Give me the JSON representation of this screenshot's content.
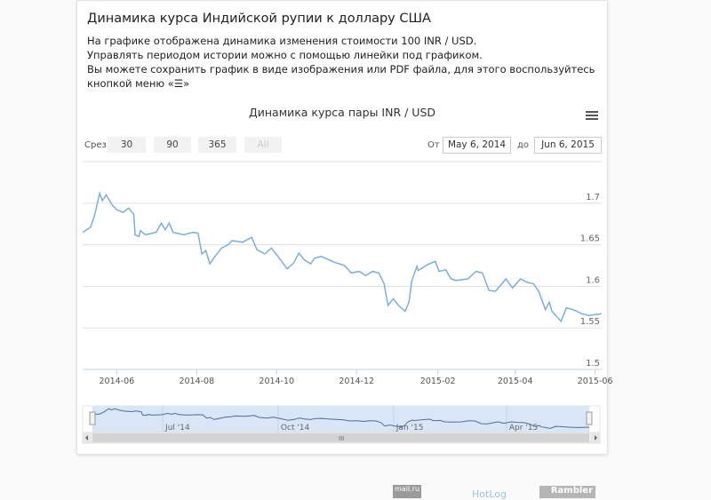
{
  "header": {
    "title": "Динамика курса Индийской рупии к доллару США",
    "description": [
      "На графике отображена динамика изменения стоимости 100 INR / USD.",
      "Управлять периодом истории можно с помощью линейки под графиком.",
      "Вы можете сохранить график в виде изображения или PDF файла, для этого воспользуйтесь",
      "кнопкой меню «☰»"
    ]
  },
  "range_selector": {
    "label": "Срез",
    "buttons": [
      "30",
      "90",
      "365",
      "All"
    ],
    "from_label": "От",
    "from_value": "May 6, 2014",
    "to_label": "до",
    "to_value": "Jun 6, 2015"
  },
  "footer": {
    "mail": "mail.ru",
    "hotlog": "HotLog",
    "rambler": "Rambler"
  },
  "colors": {
    "line": "#7cade0",
    "navigator_fill": "#d8e6f5",
    "navigator_line": "#4d6f96"
  },
  "chart_data": {
    "type": "line",
    "title": "Динамика курса пары INR / USD",
    "xlabel": "",
    "ylabel": "",
    "ylim": [
      1.5,
      1.75
    ],
    "yticks": [
      "1.5",
      "1.55",
      "1.6",
      "1.65",
      "1.7"
    ],
    "xlim": [
      "2014-05-06",
      "2015-06-06"
    ],
    "xticks": [
      {
        "date": "2014-06-01",
        "label": "2014-06"
      },
      {
        "date": "2014-08-01",
        "label": "2014-08"
      },
      {
        "date": "2014-10-01",
        "label": "2014-10"
      },
      {
        "date": "2014-12-01",
        "label": "2014-12"
      },
      {
        "date": "2015-02-01",
        "label": "2015-02"
      },
      {
        "date": "2015-04-01",
        "label": "2015-04"
      },
      {
        "date": "2015-06-01",
        "label": "2015-06"
      }
    ],
    "navigator_ticks": [
      {
        "date": "2014-07-01",
        "label": "Jul '14"
      },
      {
        "date": "2014-10-01",
        "label": "Oct '14"
      },
      {
        "date": "2015-01-01",
        "label": "Jan '15"
      },
      {
        "date": "2015-04-01",
        "label": "Apr '15"
      }
    ],
    "series": [
      {
        "name": "INR / USD",
        "points": [
          [
            "2014-05-06",
            1.665
          ],
          [
            "2014-05-12",
            1.671
          ],
          [
            "2014-05-15",
            1.685
          ],
          [
            "2014-05-19",
            1.712
          ],
          [
            "2014-05-21",
            1.703
          ],
          [
            "2014-05-24",
            1.71
          ],
          [
            "2014-05-28",
            1.699
          ],
          [
            "2014-06-01",
            1.692
          ],
          [
            "2014-06-06",
            1.689
          ],
          [
            "2014-06-10",
            1.694
          ],
          [
            "2014-06-14",
            1.687
          ],
          [
            "2014-06-15",
            1.662
          ],
          [
            "2014-06-18",
            1.66
          ],
          [
            "2014-06-19",
            1.667
          ],
          [
            "2014-06-23",
            1.662
          ],
          [
            "2014-07-01",
            1.665
          ],
          [
            "2014-07-05",
            1.676
          ],
          [
            "2014-07-08",
            1.668
          ],
          [
            "2014-07-11",
            1.676
          ],
          [
            "2014-07-14",
            1.665
          ],
          [
            "2014-07-22",
            1.662
          ],
          [
            "2014-07-29",
            1.665
          ],
          [
            "2014-08-02",
            1.664
          ],
          [
            "2014-08-05",
            1.639
          ],
          [
            "2014-08-08",
            1.643
          ],
          [
            "2014-08-11",
            1.627
          ],
          [
            "2014-08-15",
            1.636
          ],
          [
            "2014-08-20",
            1.646
          ],
          [
            "2014-08-25",
            1.65
          ],
          [
            "2014-08-28",
            1.655
          ],
          [
            "2014-09-05",
            1.653
          ],
          [
            "2014-09-12",
            1.659
          ],
          [
            "2014-09-16",
            1.644
          ],
          [
            "2014-09-22",
            1.639
          ],
          [
            "2014-09-27",
            1.646
          ],
          [
            "2014-10-03",
            1.634
          ],
          [
            "2014-10-09",
            1.621
          ],
          [
            "2014-10-14",
            1.628
          ],
          [
            "2014-10-18",
            1.64
          ],
          [
            "2014-10-22",
            1.632
          ],
          [
            "2014-10-27",
            1.627
          ],
          [
            "2014-10-30",
            1.634
          ],
          [
            "2014-11-04",
            1.636
          ],
          [
            "2014-11-14",
            1.629
          ],
          [
            "2014-11-22",
            1.625
          ],
          [
            "2014-11-27",
            1.616
          ],
          [
            "2014-12-03",
            1.618
          ],
          [
            "2014-12-08",
            1.613
          ],
          [
            "2014-12-13",
            1.618
          ],
          [
            "2014-12-18",
            1.616
          ],
          [
            "2014-12-22",
            1.603
          ],
          [
            "2014-12-25",
            1.577
          ],
          [
            "2014-12-29",
            1.585
          ],
          [
            "2015-01-02",
            1.577
          ],
          [
            "2015-01-07",
            1.57
          ],
          [
            "2015-01-10",
            1.581
          ],
          [
            "2015-01-12",
            1.606
          ],
          [
            "2015-01-16",
            1.624
          ],
          [
            "2015-01-17",
            1.619
          ],
          [
            "2015-01-24",
            1.626
          ],
          [
            "2015-01-30",
            1.63
          ],
          [
            "2015-02-02",
            1.618
          ],
          [
            "2015-02-07",
            1.62
          ],
          [
            "2015-02-11",
            1.609
          ],
          [
            "2015-02-15",
            1.607
          ],
          [
            "2015-02-24",
            1.609
          ],
          [
            "2015-03-02",
            1.618
          ],
          [
            "2015-03-07",
            1.616
          ],
          [
            "2015-03-12",
            1.595
          ],
          [
            "2015-03-17",
            1.594
          ],
          [
            "2015-03-25",
            1.609
          ],
          [
            "2015-03-30",
            1.598
          ],
          [
            "2015-04-05",
            1.609
          ],
          [
            "2015-04-10",
            1.605
          ],
          [
            "2015-04-15",
            1.603
          ],
          [
            "2015-04-19",
            1.594
          ],
          [
            "2015-04-24",
            1.572
          ],
          [
            "2015-04-27",
            1.581
          ],
          [
            "2015-04-29",
            1.57
          ],
          [
            "2015-05-06",
            1.558
          ],
          [
            "2015-05-10",
            1.574
          ],
          [
            "2015-05-15",
            1.572
          ],
          [
            "2015-05-22",
            1.567
          ],
          [
            "2015-05-27",
            1.565
          ],
          [
            "2015-06-06",
            1.567
          ]
        ]
      }
    ]
  }
}
